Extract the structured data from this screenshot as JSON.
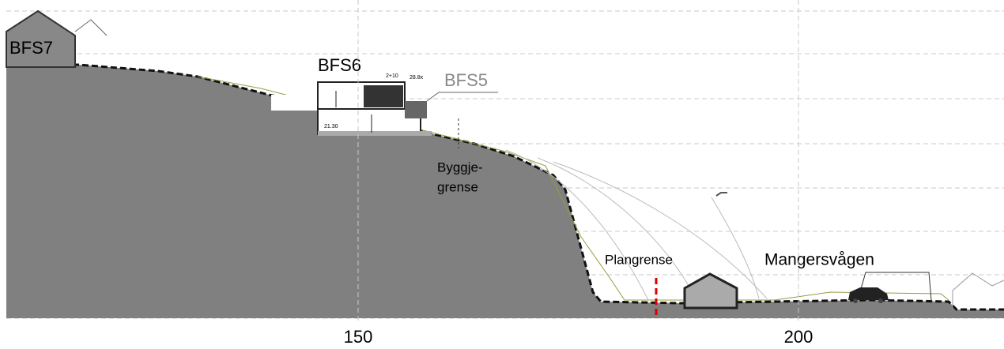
{
  "labels": {
    "bfs7": "BFS7",
    "bfs6": "BFS6",
    "bfs5": "BFS5",
    "byggjegrense_1": "Byggje-",
    "byggjegrense_2": "grense",
    "plangrense": "Plangrense",
    "mangersvagen": "Mangersvågen",
    "level_top": "2+10",
    "level_roof": "28.8x",
    "level_floor": "21.30"
  },
  "axis": {
    "ticks": [
      150,
      200
    ]
  }
}
